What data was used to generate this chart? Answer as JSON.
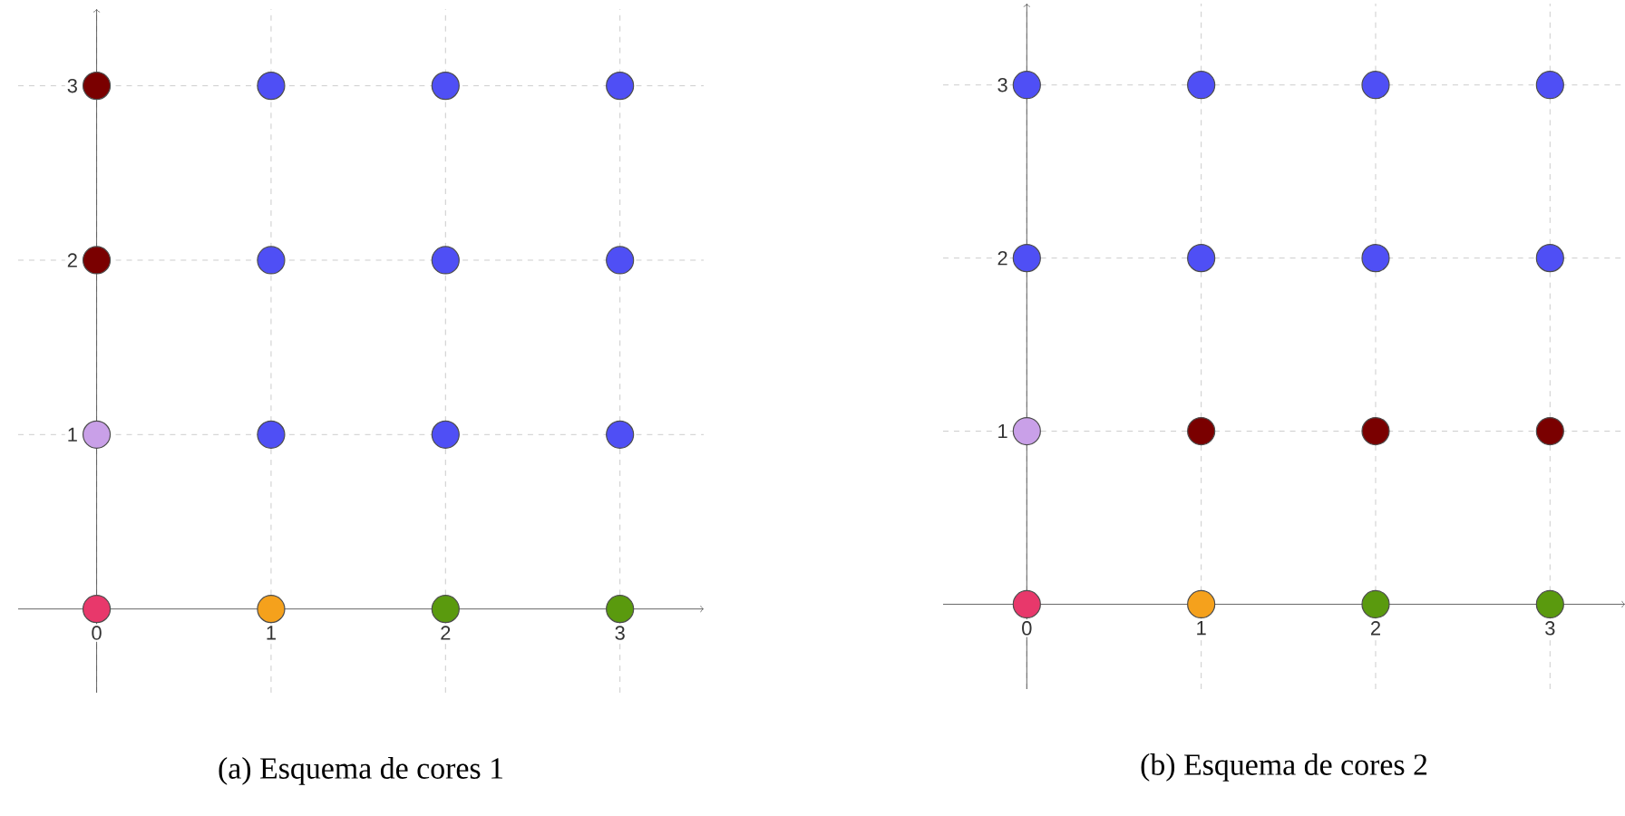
{
  "chart_data": [
    {
      "type": "scatter",
      "title": "(a) Esquema de cores 1",
      "xlim": [
        -0.45,
        3.48
      ],
      "ylim": [
        -0.48,
        3.44
      ],
      "xticks": [
        0,
        1,
        2,
        3
      ],
      "yticks": [
        1,
        2,
        3
      ],
      "grid": true,
      "marker": "circle",
      "series": [
        {
          "color": "#e8386b",
          "x": [
            0
          ],
          "values": [
            0
          ]
        },
        {
          "color": "#f5a11c",
          "x": [
            1
          ],
          "values": [
            0
          ]
        },
        {
          "color": "#5a9a0e",
          "x": [
            2,
            3
          ],
          "values": [
            0,
            0
          ]
        },
        {
          "color": "#c9a0e8",
          "x": [
            0
          ],
          "values": [
            1
          ]
        },
        {
          "color": "#7a0000",
          "x": [
            0,
            0
          ],
          "values": [
            2,
            3
          ]
        },
        {
          "color": "#4f4ff5",
          "x": [
            1,
            2,
            3,
            1,
            2,
            3,
            1,
            2,
            3
          ],
          "values": [
            1,
            1,
            1,
            2,
            2,
            2,
            3,
            3,
            3
          ]
        }
      ]
    },
    {
      "type": "scatter",
      "title": "(b) Esquema de cores 2",
      "xlim": [
        -0.48,
        3.43
      ],
      "ylim": [
        -0.49,
        3.47
      ],
      "xticks": [
        0,
        1,
        2,
        3
      ],
      "yticks": [
        1,
        2,
        3
      ],
      "grid": true,
      "marker": "circle",
      "series": [
        {
          "color": "#e8386b",
          "x": [
            0
          ],
          "values": [
            0
          ]
        },
        {
          "color": "#f5a11c",
          "x": [
            1
          ],
          "values": [
            0
          ]
        },
        {
          "color": "#5a9a0e",
          "x": [
            2,
            3
          ],
          "values": [
            0,
            0
          ]
        },
        {
          "color": "#c9a0e8",
          "x": [
            0
          ],
          "values": [
            1
          ]
        },
        {
          "color": "#7a0000",
          "x": [
            1,
            2,
            3
          ],
          "values": [
            1,
            1,
            1
          ]
        },
        {
          "color": "#4f4ff5",
          "x": [
            0,
            0,
            1,
            2,
            3,
            1,
            2,
            3
          ],
          "values": [
            2,
            3,
            2,
            2,
            2,
            3,
            3,
            3
          ]
        }
      ]
    }
  ]
}
